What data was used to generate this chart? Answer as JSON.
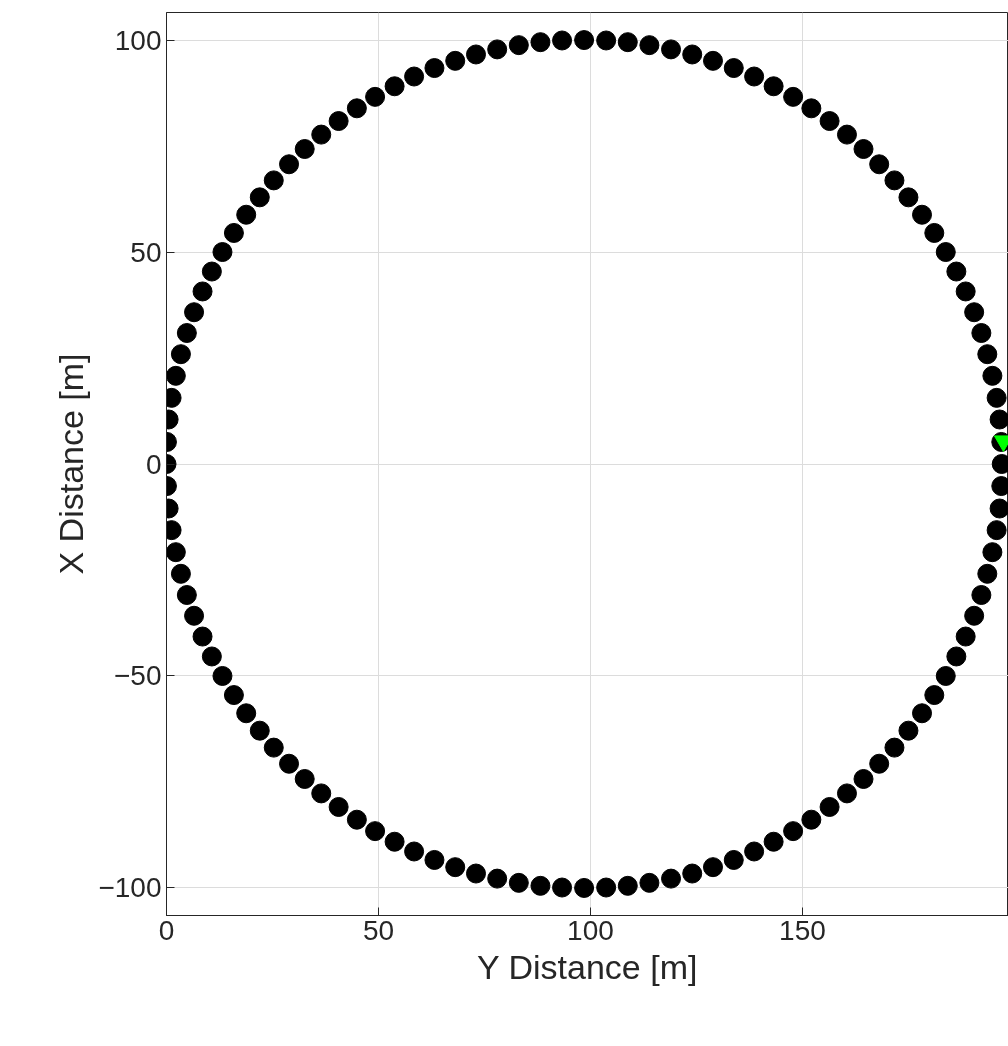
{
  "chart_data": {
    "type": "scatter",
    "xlabel": "Y Distance [m]",
    "ylabel": "X Distance [m]",
    "xlim": [
      0,
      198.6
    ],
    "ylim": [
      -106.5,
      106.5
    ],
    "xticks": [
      0,
      50,
      100,
      150
    ],
    "yticks": [
      -100,
      -50,
      0,
      50,
      100
    ],
    "grid": true,
    "marker": "circle",
    "series": [
      {
        "color": "#000000",
        "x": [
          197,
          196.9,
          196.5,
          195.8,
          194.8,
          193.6,
          192.2,
          190.5,
          188.5,
          186.3,
          183.8,
          181.1,
          178.2,
          175,
          171.7,
          168.1,
          164.4,
          160.5,
          156.4,
          152.1,
          147.8,
          143.2,
          138.6,
          133.8,
          128.9,
          124,
          119,
          113.9,
          108.8,
          103.7,
          98.5,
          93.3,
          88.2,
          83.1,
          78,
          73,
          68.1,
          63.2,
          58.4,
          53.8,
          49.2,
          44.9,
          40.6,
          36.5,
          32.6,
          28.9,
          25.3,
          22,
          18.8,
          15.9,
          13.2,
          10.7,
          8.5,
          6.5,
          4.8,
          3.4,
          2.2,
          1.2,
          0.5,
          0.1,
          0,
          0.1,
          0.5,
          1.2,
          2.2,
          3.4,
          4.8,
          6.5,
          8.5,
          10.7,
          13.2,
          15.9,
          18.8,
          22,
          25.3,
          28.9,
          32.6,
          36.5,
          40.6,
          44.9,
          49.2,
          53.8,
          58.4,
          63.2,
          68.1,
          73,
          78,
          83.1,
          88.2,
          93.3,
          98.5,
          103.7,
          108.8,
          113.9,
          119,
          124,
          128.9,
          133.8,
          138.6,
          143.2,
          147.8,
          152.1,
          156.4,
          160.5,
          164.4,
          168.1,
          171.7,
          175,
          178.2,
          181.1,
          183.8,
          186.3,
          188.5,
          190.5,
          192.2,
          193.6,
          194.8,
          195.8,
          196.5,
          196.9
        ],
        "values": [
          0,
          5.2,
          10.5,
          15.6,
          20.8,
          25.9,
          30.9,
          35.8,
          40.7,
          45.4,
          50,
          54.5,
          58.8,
          62.9,
          66.9,
          70.7,
          74.3,
          77.7,
          80.9,
          83.9,
          86.6,
          89.1,
          91.4,
          93.4,
          95.1,
          96.6,
          97.8,
          98.8,
          99.5,
          99.9,
          100,
          99.9,
          99.5,
          98.8,
          97.8,
          96.6,
          95.1,
          93.4,
          91.4,
          89.1,
          86.6,
          83.9,
          80.9,
          77.7,
          74.3,
          70.7,
          66.9,
          62.9,
          58.8,
          54.5,
          50,
          45.4,
          40.7,
          35.8,
          30.9,
          25.9,
          20.8,
          15.6,
          10.5,
          5.2,
          0,
          -5.2,
          -10.5,
          -15.6,
          -20.8,
          -25.9,
          -30.9,
          -35.8,
          -40.7,
          -45.4,
          -50,
          -54.5,
          -58.8,
          -62.9,
          -66.9,
          -70.7,
          -74.3,
          -77.7,
          -80.9,
          -83.9,
          -86.6,
          -89.1,
          -91.4,
          -93.4,
          -95.1,
          -96.6,
          -97.8,
          -98.8,
          -99.5,
          -99.9,
          -100,
          -99.9,
          -99.5,
          -98.8,
          -97.8,
          -96.6,
          -95.1,
          -93.4,
          -91.4,
          -89.1,
          -86.6,
          -83.9,
          -80.9,
          -77.7,
          -74.3,
          -70.7,
          -66.9,
          -62.9,
          -58.8,
          -54.5,
          -50,
          -45.4,
          -40.7,
          -35.8,
          -30.9,
          -25.9,
          -20.8,
          -15.6,
          -10.5,
          -5.2
        ]
      },
      {
        "color": "#00ff00",
        "marker": "triangle",
        "x": [
          197.4
        ],
        "values": [
          5.4
        ]
      }
    ]
  }
}
